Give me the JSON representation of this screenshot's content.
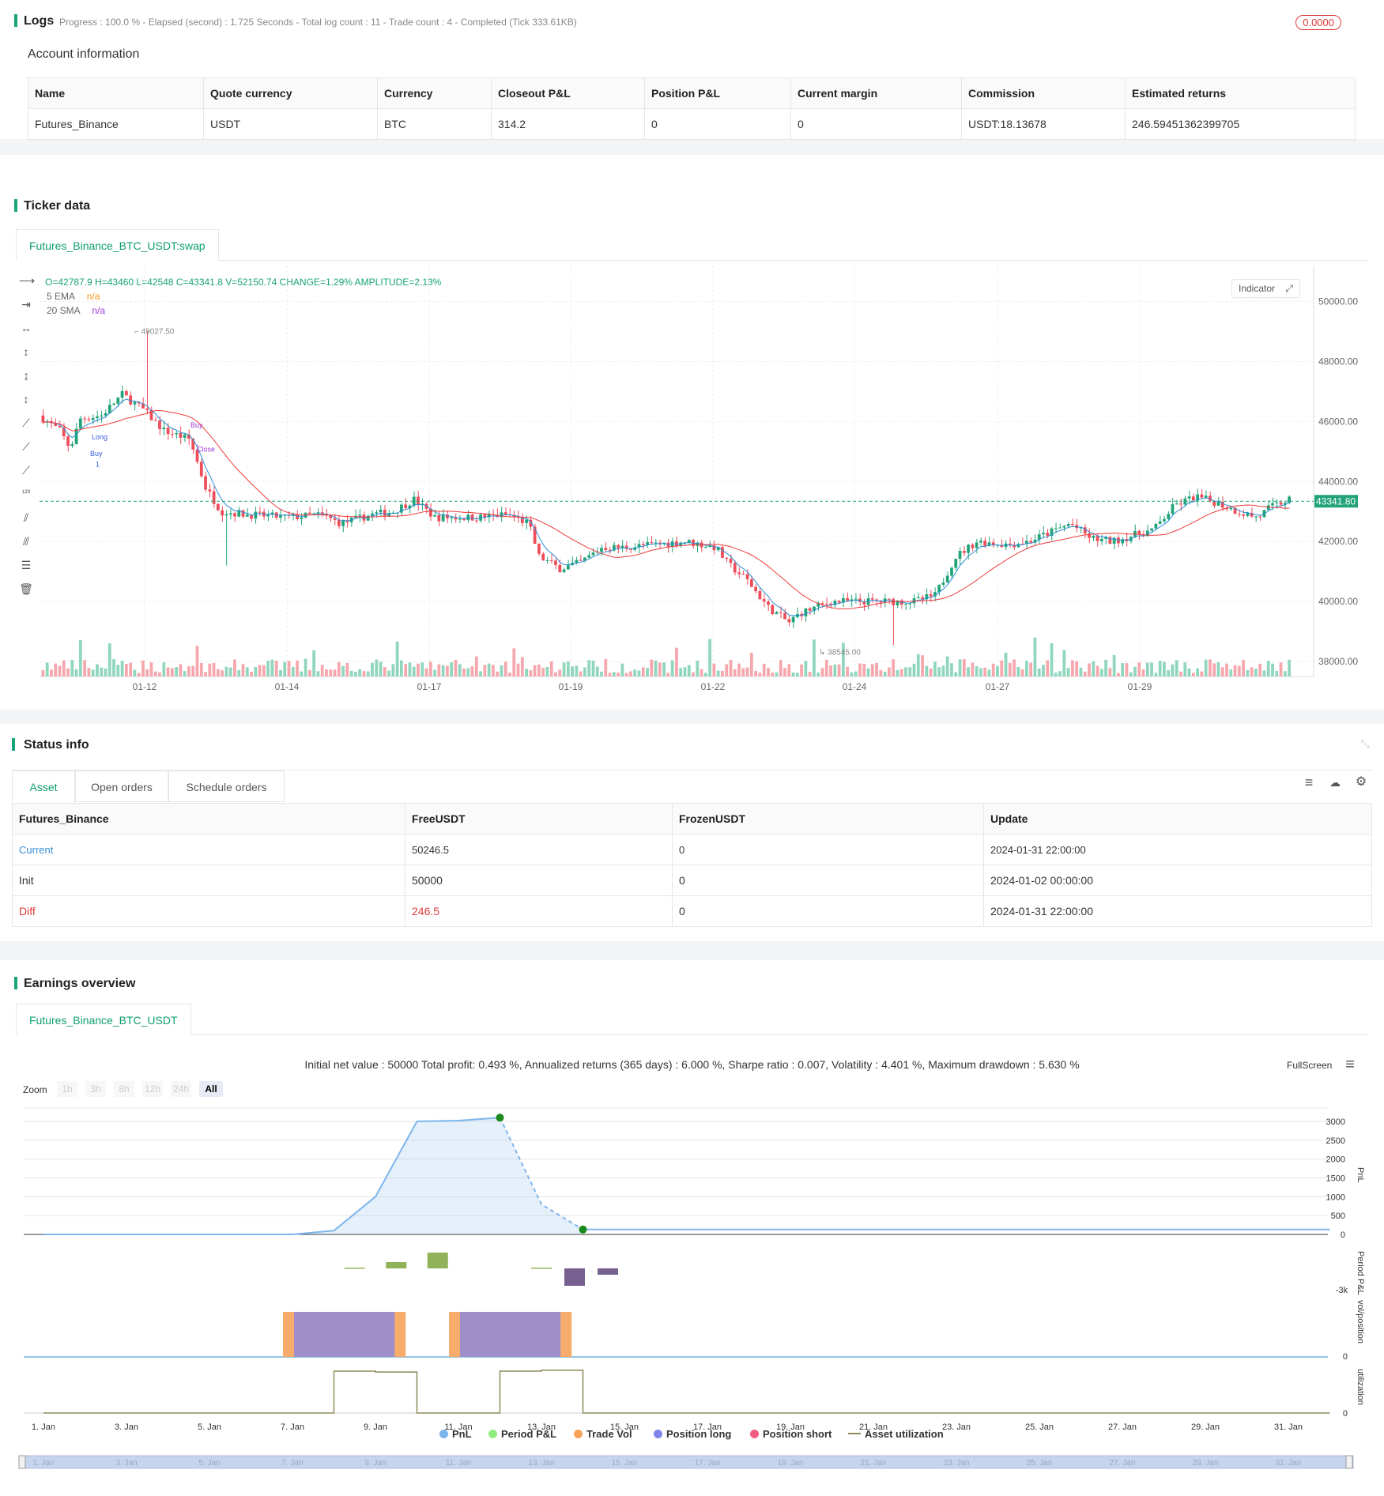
{
  "logs": {
    "title": "Logs",
    "progress": "Progress : 100.0 % - Elapsed (second) : 1.725  Seconds - Total log count : 11 - Trade count : 4 - Completed (Tick 333.61KB)",
    "badge": "0.0000"
  },
  "account": {
    "title": "Account information",
    "headers": [
      "Name",
      "Quote currency",
      "Currency",
      "Closeout P&L",
      "Position P&L",
      "Current margin",
      "Commission",
      "Estimated returns"
    ],
    "row": [
      "Futures_Binance",
      "USDT",
      "BTC",
      "314.2",
      "0",
      "0",
      "USDT:18.13678",
      "246.59451362399705"
    ]
  },
  "ticker": {
    "title": "Ticker data",
    "tab": "Futures_Binance_BTC_USDT:swap",
    "ohlc": "O=42787.9 H=43460 L=42548 C=43341.8 V=52150.74 CHANGE=1.29% AMPLITUDE=2.13%",
    "ema_label": "5 EMA",
    "ema_val": "n/a",
    "sma_label": "20 SMA",
    "sma_val": "n/a",
    "indicator_btn": "Indicator",
    "price_tag": "43341.80",
    "high_label": "49027.50",
    "low_label": "38545.00",
    "y_ticks": [
      "50000.00",
      "48000.00",
      "46000.00",
      "44000.00",
      "42000.00",
      "40000.00",
      "38000.00"
    ],
    "x_ticks": [
      "01-12",
      "01-14",
      "01-17",
      "01-19",
      "01-22",
      "01-24",
      "01-27",
      "01-29"
    ],
    "markers": [
      "Long",
      "Buy",
      "1",
      "Buy",
      "Close"
    ]
  },
  "status": {
    "title": "Status info",
    "tabs": [
      "Asset",
      "Open orders",
      "Schedule orders"
    ],
    "headers": [
      "Futures_Binance",
      "FreeUSDT",
      "FrozenUSDT",
      "Update"
    ],
    "rows": [
      [
        "Current",
        "50246.5",
        "0",
        "2024-01-31 22:00:00"
      ],
      [
        "Init",
        "50000",
        "0",
        "2024-01-02 00:00:00"
      ],
      [
        "Diff",
        "246.5",
        "0",
        "2024-01-31 22:00:00"
      ]
    ]
  },
  "earnings": {
    "title": "Earnings overview",
    "tab": "Futures_Binance_BTC_USDT",
    "summary": "Initial net value : 50000 Total profit: 0.493 %, Annualized returns (365 days) : 6.000 %, Sharpe ratio : 0.007, Volatility : 4.401 %, Maximum drawdown : 5.630 %",
    "fullscreen": "FullScreen",
    "zoom_label": "Zoom",
    "zoom_opts": [
      "1h",
      "3h",
      "8h",
      "12h",
      "24h",
      "All"
    ],
    "pnl_ticks": [
      "3000",
      "2500",
      "2000",
      "1500",
      "1000",
      "500",
      "0"
    ],
    "axis_titles": [
      "PnL",
      "Period P&L",
      "vol/position",
      "utilization"
    ],
    "period_tick": "-3k",
    "zero": "0",
    "x_ticks": [
      "1. Jan",
      "3. Jan",
      "5. Jan",
      "7. Jan",
      "9. Jan",
      "11. Jan",
      "13. Jan",
      "15. Jan",
      "17. Jan",
      "19. Jan",
      "21. Jan",
      "23. Jan",
      "25. Jan",
      "27. Jan",
      "29. Jan",
      "31. Jan"
    ],
    "legend": [
      "PnL",
      "Period P&L",
      "Trade Vol",
      "Position long",
      "Position short",
      "Asset utilization"
    ],
    "colors": {
      "pnl": "#7cb5ec",
      "period": "#90ed7d",
      "vol": "#f7a35c",
      "long": "#8085e9",
      "short": "#f15c80",
      "util": "#8d8a5a"
    }
  }
}
